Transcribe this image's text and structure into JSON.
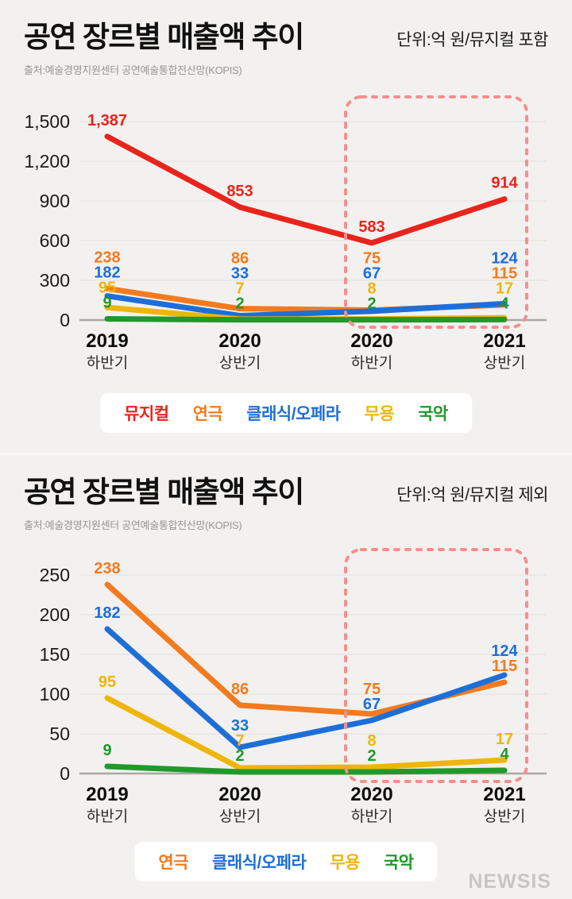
{
  "watermark": "NEWSIS",
  "chart_data": [
    {
      "type": "line",
      "title": "공연 장르별 매출액 추이",
      "unit_label": "단위:억 원/뮤지컬 포함",
      "source": "출처:예술경영지원센터 공연예술통합전산망(KOPIS)",
      "categories": [
        [
          "2019",
          "하반기"
        ],
        [
          "2020",
          "상반기"
        ],
        [
          "2020",
          "하반기"
        ],
        [
          "2021",
          "상반기"
        ]
      ],
      "y_ticks": [
        0,
        300,
        600,
        900,
        1200,
        1500
      ],
      "ylim": [
        0,
        1500
      ],
      "grid": true,
      "legend_position": "bottom",
      "highlight_category_range": [
        2,
        3
      ],
      "highlight_color": "#f2908e",
      "series": [
        {
          "name": "뮤지컬",
          "color": "#e8241c",
          "values": [
            1387,
            853,
            583,
            914
          ]
        },
        {
          "name": "연극",
          "color": "#f47a1f",
          "values": [
            238,
            86,
            75,
            115
          ]
        },
        {
          "name": "클래식/오페라",
          "color": "#1e6ed8",
          "values": [
            182,
            33,
            67,
            124
          ]
        },
        {
          "name": "무용",
          "color": "#eeb50a",
          "values": [
            95,
            7,
            8,
            17
          ]
        },
        {
          "name": "국악",
          "color": "#20992b",
          "values": [
            9,
            2,
            2,
            4
          ]
        }
      ],
      "legend": [
        "뮤지컬",
        "연극",
        "클래식/오페라",
        "무용",
        "국악"
      ]
    },
    {
      "type": "line",
      "title": "공연 장르별 매출액 추이",
      "unit_label": "단위:억 원/뮤지컬 제외",
      "source": "출처:예술경영지원센터 공연예술통합전산망(KOPIS)",
      "categories": [
        [
          "2019",
          "하반기"
        ],
        [
          "2020",
          "상반기"
        ],
        [
          "2020",
          "하반기"
        ],
        [
          "2021",
          "상반기"
        ]
      ],
      "y_ticks": [
        0,
        50,
        100,
        150,
        200,
        250
      ],
      "ylim": [
        0,
        250
      ],
      "grid": true,
      "legend_position": "bottom",
      "highlight_category_range": [
        2,
        3
      ],
      "highlight_color": "#f2908e",
      "series": [
        {
          "name": "연극",
          "color": "#f47a1f",
          "values": [
            238,
            86,
            75,
            115
          ]
        },
        {
          "name": "클래식/오페라",
          "color": "#1e6ed8",
          "values": [
            182,
            33,
            67,
            124
          ]
        },
        {
          "name": "무용",
          "color": "#eeb50a",
          "values": [
            95,
            7,
            8,
            17
          ]
        },
        {
          "name": "국악",
          "color": "#20992b",
          "values": [
            9,
            2,
            2,
            4
          ]
        }
      ],
      "legend": [
        "연극",
        "클래식/오페라",
        "무용",
        "국악"
      ]
    }
  ]
}
